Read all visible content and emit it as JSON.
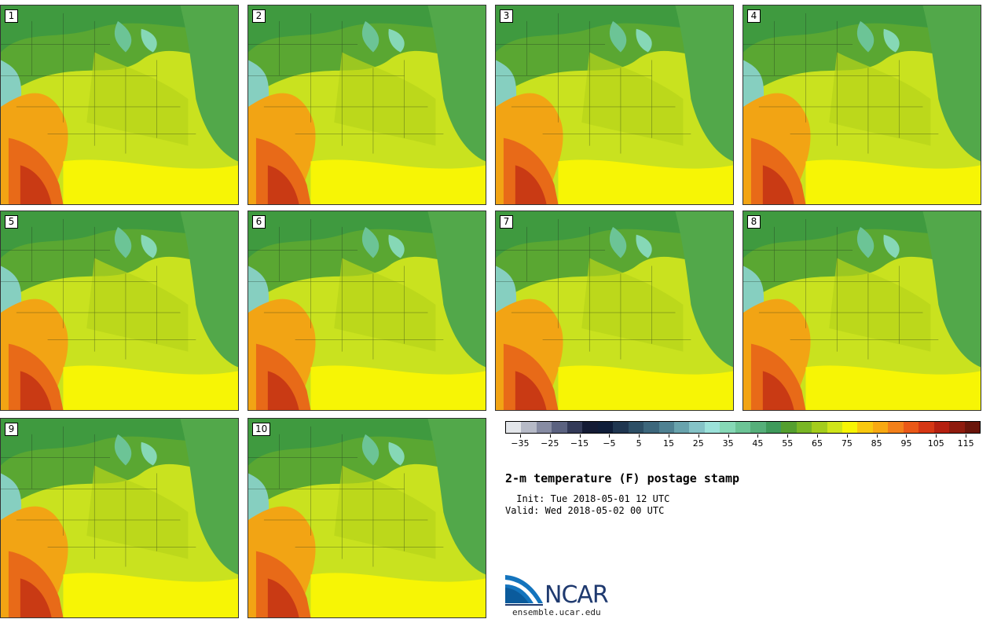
{
  "panels": [
    {
      "label": "1"
    },
    {
      "label": "2"
    },
    {
      "label": "3"
    },
    {
      "label": "4"
    },
    {
      "label": "5"
    },
    {
      "label": "6"
    },
    {
      "label": "7"
    },
    {
      "label": "8"
    },
    {
      "label": "9"
    },
    {
      "label": "10"
    }
  ],
  "colorbar": {
    "tick_labels": [
      "−35",
      "−25",
      "−15",
      "−5",
      "5",
      "15",
      "25",
      "35",
      "45",
      "55",
      "65",
      "75",
      "85",
      "95",
      "105",
      "115"
    ],
    "colors": [
      "#e3e6ea",
      "#b6bac7",
      "#878ca3",
      "#5b6280",
      "#333a58",
      "#141b35",
      "#0f1d39",
      "#1f3650",
      "#2d4f66",
      "#3d677c",
      "#4f8192",
      "#69a3ad",
      "#85c3c7",
      "#9ce2da",
      "#86d8b6",
      "#6cc496",
      "#56af7a",
      "#3f9a5b",
      "#549f2f",
      "#79b625",
      "#a4cd1c",
      "#cfe51a",
      "#f7f505",
      "#f9c90f",
      "#f8a912",
      "#f3801a",
      "#ea5817",
      "#d63714",
      "#b52010",
      "#8f1b0e",
      "#6a150b"
    ],
    "colors_ref": "colormap",
    "range": [
      -40,
      120
    ]
  },
  "title": "2-m temperature (F) postage stamp",
  "init": " Init: Tue 2018-05-01 12 UTC",
  "valid": "Valid: Wed 2018-05-02 00 UTC",
  "logo": {
    "text": "NCAR"
  },
  "site": "ensemble.ucar.edu"
}
